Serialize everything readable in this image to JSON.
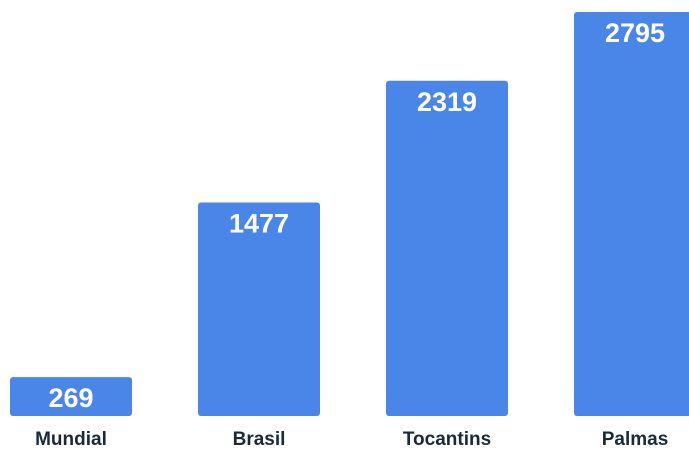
{
  "colors": {
    "bar": "#4a86e8",
    "value_label": "#ffffff",
    "category_label": "#1a2a3a",
    "background": "#ffffff"
  },
  "chart_data": {
    "type": "bar",
    "categories": [
      "Mundial",
      "Brasil",
      "Tocantins",
      "Palmas"
    ],
    "values": [
      269,
      1477,
      2319,
      2795
    ],
    "value_labels": [
      "269",
      "1477",
      "2319",
      "2795"
    ],
    "title": "",
    "xlabel": "",
    "ylabel": "",
    "ylim": [
      0,
      2795
    ],
    "grid": false,
    "legend": "none",
    "data_labels": "inside-top"
  }
}
